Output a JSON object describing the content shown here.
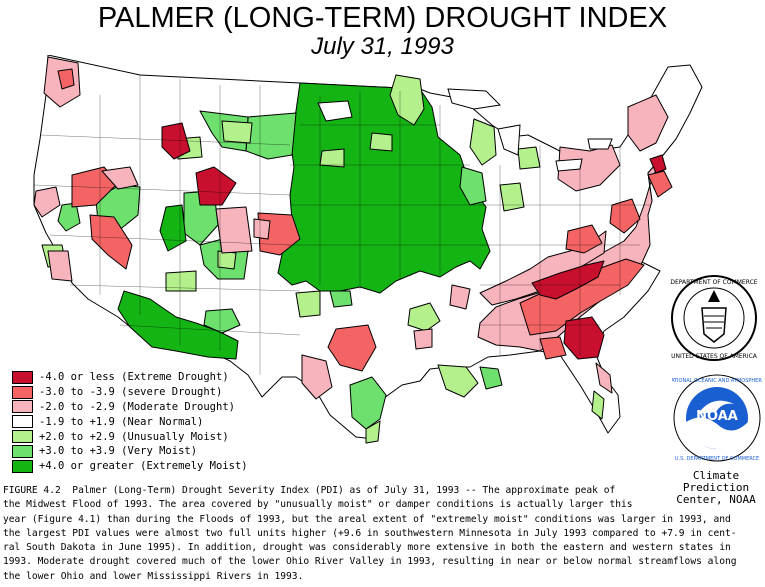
{
  "title": "PALMER (LONG-TERM) DROUGHT INDEX",
  "subtitle": "July 31, 1993",
  "legend": [
    {
      "label": "-4.0 or less (Extreme Drought)",
      "color": "#c8102e"
    },
    {
      "label": "-3.0 to -3.9 (severe Drought)",
      "color": "#f46464"
    },
    {
      "label": "-2.0 to -2.9 (Moderate Drought)",
      "color": "#f8b4bc"
    },
    {
      "label": "-1.9 to +1.9 (Near Normal)",
      "color": "#ffffff"
    },
    {
      "label": "+2.0 to +2.9 (Unusually Moist)",
      "color": "#b4f08c"
    },
    {
      "label": "+3.0 to +3.9 (Very Moist)",
      "color": "#6ee06e"
    },
    {
      "label": "+4.0 or greater (Extremely Moist)",
      "color": "#14b414"
    }
  ],
  "caption_lines": [
    "FIGURE 4.2  Palmer (Long-Term) Drought Severity Index (PDI) as of July 31, 1993 -- The approximate peak of",
    "the Midwest Flood of 1993. The area covered by \"unusually moist\" or damper conditions is actually larger this",
    "year (Figure 4.1) than during the Floods of 1993, but the areal extent of \"extremely moist\" conditions was larger in 1993, and",
    "the largest PDI values were almost two full units higher (+9.6 in southwestern Minnesota in July 1993 compared to +7.9 in cent-",
    "ral South Dakota in June 1995). In addition, drought was considerably more extensive in both the eastern and western states in",
    "1993. Moderate drought covered much of the lower Ohio River Valley in 1993, resulting in near or below normal streamflows along",
    "the lower Ohio and lower Mississippi Rivers in 1993."
  ],
  "logos": {
    "seal_text": "DEPARTMENT OF COMMERCE · UNITED STATES OF AMERICA",
    "noaa_text": "NOAA",
    "noaa_ring_text": "NATIONAL OCEANIC AND ATMOSPHERIC ADMINISTRATION · U.S. DEPARTMENT OF COMMERCE"
  },
  "credit": [
    "Climate",
    "Prediction",
    "Center, NOAA"
  ]
}
